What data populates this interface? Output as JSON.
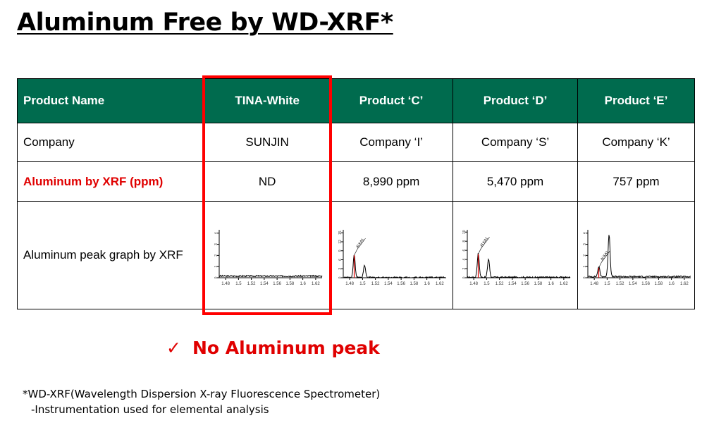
{
  "title": "Aluminum Free by WD-XRF*",
  "table": {
    "header": [
      "Product Name",
      "TINA-White",
      "Product ‘C’",
      "Product ‘D’",
      "Product ‘E’"
    ],
    "company_row": [
      "Company",
      "SUNJIN",
      "Company ‘I’",
      "Company ‘S’",
      "Company ‘K’"
    ],
    "aluminum_row": [
      "Aluminum by XRF (ppm)",
      "ND",
      "8,990 ppm",
      "5,470 ppm",
      "757 ppm"
    ],
    "graph_row_label": "Aluminum peak graph by XRF"
  },
  "note": {
    "check_icon": "✓",
    "text": "No Aluminum peak"
  },
  "footnote": {
    "line1": "*WD-XRF(Wavelength Dispersion X-ray Fluorescence Spectrometer)",
    "line2": "-Instrumentation used for elemental analysis"
  },
  "colors": {
    "header_bg": "#006b4e",
    "highlight": "#ff0000",
    "accent_text": "#e00000"
  },
  "chart_data": [
    {
      "type": "line",
      "product": "TINA-White",
      "x_ticks": [
        "1.48",
        "1.5",
        "1.52",
        "1.54",
        "1.56",
        "1.58",
        "1.6",
        "1.62"
      ],
      "xlim": [
        1.47,
        1.63
      ],
      "y_ticks": [
        "0",
        "1",
        "2",
        "3",
        "4"
      ],
      "ylim": [
        0,
        4.3
      ],
      "baseline": 0.15,
      "peaks": [],
      "peak_label": ""
    },
    {
      "type": "line",
      "product": "Product C",
      "x_ticks": [
        "1.48",
        "1.5",
        "1.52",
        "1.54",
        "1.56",
        "1.58",
        "1.6",
        "1.62"
      ],
      "xlim": [
        1.47,
        1.63
      ],
      "y_ticks": [
        "0",
        "3",
        "6",
        "9",
        "12",
        "15"
      ],
      "ylim": [
        0,
        16
      ],
      "baseline": 0.1,
      "peaks": [
        {
          "x": 1.487,
          "y": 7.5
        },
        {
          "x": 1.503,
          "y": 4
        }
      ],
      "peak_label": "Al KA1"
    },
    {
      "type": "line",
      "product": "Product D",
      "x_ticks": [
        "1.48",
        "1.5",
        "1.52",
        "1.54",
        "1.56",
        "1.58",
        "1.6",
        "1.62"
      ],
      "xlim": [
        1.47,
        1.63
      ],
      "y_ticks": [
        "0",
        "2",
        "4",
        "6",
        "8",
        "10"
      ],
      "ylim": [
        0,
        10.5
      ],
      "baseline": 0.1,
      "peaks": [
        {
          "x": 1.487,
          "y": 5.2
        },
        {
          "x": 1.503,
          "y": 4
        }
      ],
      "peak_label": "Al KA1"
    },
    {
      "type": "line",
      "product": "Product E",
      "x_ticks": [
        "1.48",
        "1.5",
        "1.52",
        "1.54",
        "1.56",
        "1.58",
        "1.6",
        "1.62"
      ],
      "xlim": [
        1.47,
        1.63
      ],
      "y_ticks": [
        "0",
        "1",
        "2",
        "3",
        "4"
      ],
      "ylim": [
        0,
        4.3
      ],
      "baseline": 0.1,
      "peaks": [
        {
          "x": 1.487,
          "y": 0.9
        },
        {
          "x": 1.503,
          "y": 3.8
        }
      ],
      "peak_label": "Al KA1"
    }
  ]
}
